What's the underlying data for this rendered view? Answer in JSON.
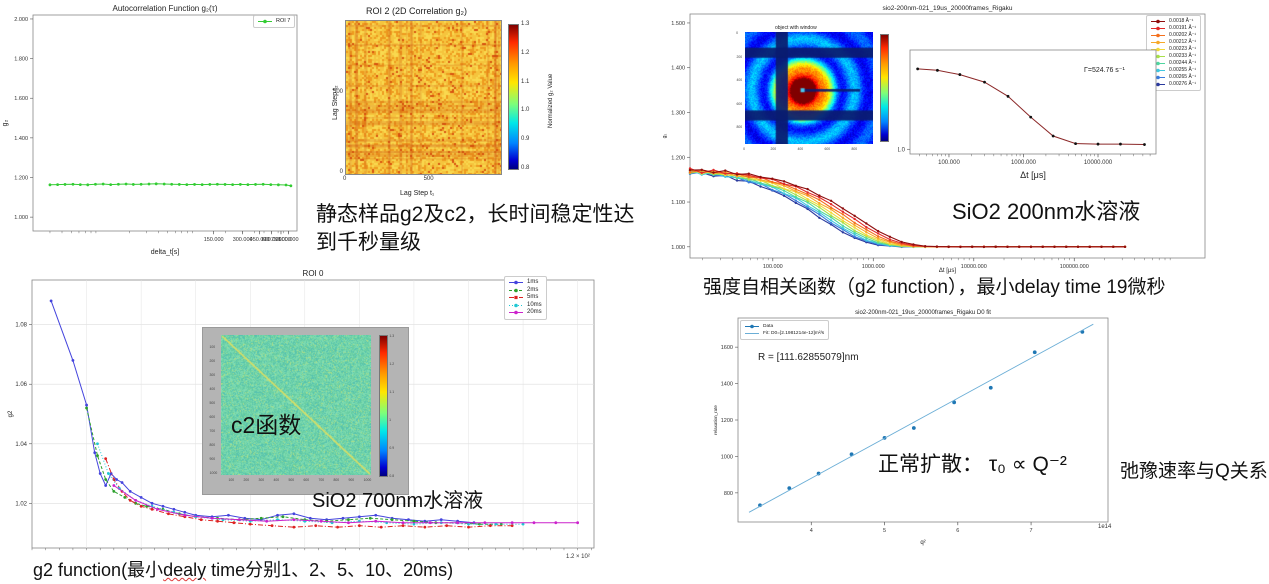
{
  "texts": {
    "static_sample": "静态样品g2及c2，长时间稳定性达到千秒量级",
    "c2_overlay": "c2函数",
    "sio2_700": "SiO2 700nm水溶液",
    "caption_left_a": "g2 function(最小",
    "caption_left_b": "dealy",
    "caption_left_c": " time分别1、2、5、10、20ms)",
    "sio2_200": "SiO2 200nm水溶液",
    "caption_right": "强度自相关函数（g2 function），最小delay time 19微秒",
    "normal_diffusion": "正常扩散：  τ₀ ∝ Q⁻²",
    "relaxation_q": "弛豫速率与Q关系",
    "gamma_annotation": "Γ=524.76 s⁻¹",
    "r_annotation": "R = [111.62855079]nm",
    "roi0_offset": "1.2 × 10²",
    "d0fit_offset": "1e14"
  },
  "chart_data": {
    "autocorr": {
      "type": "line",
      "title": "Autocorrelation Function g₂(τ)",
      "xlabel": "delta_t[s]",
      "ylabel": "g₂",
      "xlog": true,
      "xmin": 2,
      "xmax": 1100,
      "ymin": 0.93,
      "ymax": 2.02,
      "xticks": [
        {
          "v": 150,
          "l": "150.000"
        },
        {
          "v": 300,
          "l": "300.000"
        },
        {
          "v": 450,
          "l": "450.000"
        },
        {
          "v": 600,
          "l": "600.000"
        },
        {
          "v": 750,
          "l": "750.000"
        },
        {
          "v": 900,
          "l": "900.000"
        }
      ],
      "yticks": [
        {
          "v": 1.0,
          "l": "1.000"
        },
        {
          "v": 1.2,
          "l": "1.200"
        },
        {
          "v": 1.4,
          "l": "1.400"
        },
        {
          "v": 1.6,
          "l": "1.600"
        },
        {
          "v": 1.8,
          "l": "1.800"
        },
        {
          "v": 2.0,
          "l": "2.000"
        }
      ],
      "legend": [
        {
          "label": "ROI 7",
          "color": "#33cc33",
          "dash": "none",
          "marker": "circle"
        }
      ],
      "series": [
        {
          "name": "ROI 7",
          "color": "#33cc33",
          "marker": true,
          "x": [
            3,
            3.6,
            4.3,
            5.2,
            6.2,
            7.4,
            8.9,
            10.7,
            12.8,
            15.4,
            18.5,
            22,
            26.5,
            32,
            38,
            46,
            55,
            66,
            79,
            95,
            114,
            137,
            164,
            197,
            236,
            284,
            340,
            408,
            490,
            588,
            705,
            846,
            950
          ],
          "y": [
            1.163,
            1.164,
            1.165,
            1.166,
            1.164,
            1.163,
            1.166,
            1.167,
            1.164,
            1.166,
            1.167,
            1.165,
            1.166,
            1.167,
            1.168,
            1.167,
            1.166,
            1.165,
            1.164,
            1.165,
            1.164,
            1.165,
            1.166,
            1.165,
            1.164,
            1.165,
            1.164,
            1.165,
            1.166,
            1.164,
            1.163,
            1.162,
            1.158
          ]
        }
      ]
    },
    "roi2": {
      "type": "heatmap",
      "title": "ROI 2 (2D Correlation g₂)",
      "xlabel": "Lag Step t₁",
      "ylabel": "Lag Step t₂",
      "xticks": [
        {
          "l": "0",
          "f": 0
        },
        {
          "l": "500",
          "f": 0.52
        }
      ],
      "yticks": [
        {
          "l": "500",
          "f": 0.52
        },
        {
          "l": "0",
          "f": 0
        }
      ],
      "colorbar": {
        "label": "Normalized g₂ Value",
        "ticks": [
          "1.3",
          "1.2",
          "1.1",
          "1.0",
          "0.9",
          "0.8"
        ]
      }
    },
    "roi0": {
      "type": "line",
      "title": "ROI 0",
      "ylabel": "g2",
      "xlog": false,
      "xmin": 0,
      "xmax": 1.03,
      "ymin": 1.005,
      "ymax": 1.095,
      "grid": true,
      "yticks": [
        {
          "v": 1.02,
          "l": "1.02"
        },
        {
          "v": 1.04,
          "l": "1.04"
        },
        {
          "v": 1.06,
          "l": "1.06"
        },
        {
          "v": 1.08,
          "l": "1.08"
        }
      ],
      "legend": [
        {
          "label": "1ms",
          "color": "#4444dd",
          "dash": "none",
          "marker": "circle"
        },
        {
          "label": "2ms",
          "color": "#2ca02c",
          "dash": "3,2",
          "marker": "circle"
        },
        {
          "label": "5ms",
          "color": "#dd2222",
          "dash": "5,2,1,2",
          "marker": "square"
        },
        {
          "label": "10ms",
          "color": "#1fc8d4",
          "dash": "1,2",
          "marker": "circle"
        },
        {
          "label": "20ms",
          "color": "#cc22cc",
          "dash": "none",
          "marker": "circle"
        }
      ],
      "series": [
        {
          "name": "1ms",
          "color": "#4444dd",
          "marker": true,
          "x": [
            0.035,
            0.075,
            0.1,
            0.115,
            0.125,
            0.135,
            0.145,
            0.155,
            0.165,
            0.18,
            0.2,
            0.22,
            0.24,
            0.26,
            0.28,
            0.3,
            0.33,
            0.36,
            0.39,
            0.42,
            0.45,
            0.48,
            0.51,
            0.54,
            0.57,
            0.6,
            0.63,
            0.66,
            0.69,
            0.72,
            0.75,
            0.78,
            0.81
          ],
          "y": [
            1.088,
            1.068,
            1.053,
            1.037,
            1.03,
            1.026,
            1.03,
            1.028,
            1.027,
            1.024,
            1.022,
            1.02,
            1.019,
            1.018,
            1.017,
            1.016,
            1.0155,
            1.016,
            1.015,
            1.0145,
            1.016,
            1.0165,
            1.015,
            1.0145,
            1.015,
            1.0155,
            1.016,
            1.015,
            1.0145,
            1.014,
            1.0145,
            1.014,
            1.0135
          ]
        },
        {
          "name": "2ms",
          "color": "#2ca02c",
          "dash": "3,2",
          "marker": true,
          "x": [
            0.1,
            0.12,
            0.135,
            0.15,
            0.17,
            0.19,
            0.21,
            0.24,
            0.27,
            0.3,
            0.34,
            0.38,
            0.42,
            0.46,
            0.5,
            0.54,
            0.58,
            0.62,
            0.66,
            0.7,
            0.74,
            0.78,
            0.82,
            0.86
          ],
          "y": [
            1.052,
            1.036,
            1.028,
            1.024,
            1.022,
            1.02,
            1.019,
            1.018,
            1.0165,
            1.0155,
            1.015,
            1.0145,
            1.015,
            1.0155,
            1.0145,
            1.014,
            1.0145,
            1.015,
            1.0145,
            1.014,
            1.0135,
            1.0135,
            1.013,
            1.013
          ]
        },
        {
          "name": "5ms",
          "color": "#dd2222",
          "dash": "5,2,1,2",
          "marker": true,
          "x": [
            0.135,
            0.15,
            0.165,
            0.18,
            0.2,
            0.22,
            0.25,
            0.28,
            0.31,
            0.34,
            0.37,
            0.4,
            0.44,
            0.48,
            0.52,
            0.56,
            0.6,
            0.64,
            0.68,
            0.72,
            0.76,
            0.8,
            0.84,
            0.88
          ],
          "y": [
            1.035,
            1.028,
            1.024,
            1.021,
            1.019,
            1.018,
            1.0165,
            1.0155,
            1.0145,
            1.014,
            1.0135,
            1.013,
            1.0125,
            1.012,
            1.0125,
            1.012,
            1.0125,
            1.012,
            1.0125,
            1.012,
            1.0125,
            1.012,
            1.0125,
            1.0125
          ]
        },
        {
          "name": "10ms",
          "color": "#1fc8d4",
          "dash": "1,2",
          "marker": true,
          "x": [
            0.12,
            0.14,
            0.16,
            0.19,
            0.22,
            0.26,
            0.3,
            0.35,
            0.4,
            0.45,
            0.5,
            0.55,
            0.6,
            0.65,
            0.7,
            0.75,
            0.8,
            0.85,
            0.9
          ],
          "y": [
            1.04,
            1.03,
            1.025,
            1.021,
            1.019,
            1.017,
            1.0155,
            1.0145,
            1.014,
            1.0145,
            1.014,
            1.0135,
            1.014,
            1.0135,
            1.013,
            1.0135,
            1.013,
            1.013,
            1.013
          ]
        },
        {
          "name": "20ms",
          "color": "#cc22cc",
          "marker": true,
          "x": [
            0.15,
            0.19,
            0.23,
            0.28,
            0.33,
            0.38,
            0.43,
            0.48,
            0.53,
            0.58,
            0.63,
            0.68,
            0.73,
            0.78,
            0.83,
            0.88,
            0.92,
            0.96,
            1.0
          ],
          "y": [
            1.026,
            1.021,
            1.018,
            1.016,
            1.015,
            1.0145,
            1.014,
            1.0145,
            1.014,
            1.0135,
            1.014,
            1.0135,
            1.0135,
            1.0135,
            1.0135,
            1.0135,
            1.0135,
            1.0135,
            1.0135
          ]
        }
      ]
    },
    "c2_inset": {
      "type": "heatmap",
      "xticks": [
        "100",
        "200",
        "300",
        "400",
        "500",
        "600",
        "700",
        "800",
        "900",
        "1000"
      ],
      "yticks": [
        "100",
        "200",
        "300",
        "400",
        "500",
        "600",
        "700",
        "800",
        "900",
        "1000"
      ],
      "colorbar": {
        "ticks": [
          "1.3",
          "1.2",
          "1.1",
          "1",
          "0.9",
          "0.8"
        ]
      }
    },
    "rigaku": {
      "type": "line",
      "title": "sio2-200nm-021_19us_20000frames_Rigaku",
      "xlabel": "Δt [μs]",
      "ylabel": "g₂",
      "xlog": true,
      "xmin": 15,
      "xmax": 2000000,
      "ymin": 0.975,
      "ymax": 1.52,
      "baseline": 1.0,
      "beta": 0.175,
      "xticks": [
        {
          "v": 100,
          "l": "100.000"
        },
        {
          "v": 1000,
          "l": "1000.000"
        },
        {
          "v": 10000,
          "l": "10000.000"
        },
        {
          "v": 100000,
          "l": "100000.000"
        }
      ],
      "yticks": [
        {
          "v": 1.0,
          "l": "1.000"
        },
        {
          "v": 1.1,
          "l": "1.100"
        },
        {
          "v": 1.2,
          "l": "1.200"
        },
        {
          "v": 1.3,
          "l": "1.300"
        },
        {
          "v": 1.4,
          "l": "1.400"
        },
        {
          "v": 1.5,
          "l": "1.500"
        }
      ],
      "series": [
        {
          "name": "0.0018 Å⁻¹",
          "color": "#8f0d0d",
          "tau_us": 1404
        },
        {
          "name": "0.00191 Å⁻¹",
          "color": "#e22b2b",
          "tau_us": 1247
        },
        {
          "name": "0.00202 Å⁻¹",
          "color": "#f4701d",
          "tau_us": 1115
        },
        {
          "name": "0.00212 Å⁻¹",
          "color": "#f7a929",
          "tau_us": 1012
        },
        {
          "name": "0.00223 Å⁻¹",
          "color": "#f2d93b",
          "tau_us": 915
        },
        {
          "name": "0.00233 Å⁻¹",
          "color": "#a8e04a",
          "tau_us": 838
        },
        {
          "name": "0.00244 Å⁻¹",
          "color": "#4fd6a0",
          "tau_us": 764
        },
        {
          "name": "0.00255 Å⁻¹",
          "color": "#3fc8e0",
          "tau_us": 700
        },
        {
          "name": "0.00265 Å⁻¹",
          "color": "#3a7bdc",
          "tau_us": 648
        },
        {
          "name": "0.00276 Å⁻¹",
          "color": "#2b3a9e",
          "tau_us": 597
        }
      ]
    },
    "speckle": {
      "type": "heatmap",
      "title": "object with window",
      "xticks": [
        "0",
        "200",
        "400",
        "600",
        "800"
      ],
      "yticks": [
        "0",
        "200",
        "400",
        "600",
        "800"
      ]
    },
    "g2_inset": {
      "type": "line",
      "xlabel": "Δt [μs]",
      "ylabel": "g2",
      "xlog": true,
      "xmin": 30,
      "xmax": 60000,
      "ymin": 0.99,
      "ymax": 1.21,
      "xticks": [
        {
          "v": 100,
          "l": "100.000"
        },
        {
          "v": 1000,
          "l": "1000.000"
        },
        {
          "v": 10000,
          "l": "10000.000"
        }
      ],
      "yticks": [
        {
          "v": 1.0,
          "l": "1.0"
        }
      ],
      "series": [
        {
          "name": "g2 fit",
          "color": "#8b2727",
          "marker": true,
          "mc": "#111",
          "x": [
            38,
            70,
            140,
            300,
            620,
            1250,
            2500,
            5000,
            10000,
            20000,
            42000
          ],
          "y": [
            1.17,
            1.167,
            1.158,
            1.142,
            1.112,
            1.068,
            1.028,
            1.012,
            1.011,
            1.011,
            1.01
          ]
        }
      ]
    },
    "d0fit": {
      "type": "scatter",
      "title": "sio2-200nm-021_19us_20000frames_Rigaku D0 fit",
      "xlabel": "q²",
      "ylabel": "relaxation_rate",
      "xlog": false,
      "xmin": 3.0,
      "xmax": 8.05,
      "ymin": 640,
      "ymax": 1760,
      "xticks": [
        {
          "v": 4,
          "l": "4"
        },
        {
          "v": 5,
          "l": "5"
        },
        {
          "v": 6,
          "l": "6"
        },
        {
          "v": 7,
          "l": "7"
        }
      ],
      "yticks": [
        {
          "v": 800,
          "l": "800"
        },
        {
          "v": 1000,
          "l": "1000"
        },
        {
          "v": 1200,
          "l": "1200"
        },
        {
          "v": 1400,
          "l": "1400"
        },
        {
          "v": 1600,
          "l": "1600"
        }
      ],
      "legend": [
        {
          "label": "Data",
          "color": "#1f77b4",
          "dash": "none",
          "marker": "circle",
          "lineless": true
        },
        {
          "label": "Fit: D0=[2.1981214e-12]m²/s",
          "color": "#6baed6",
          "dash": "none",
          "marker": "none"
        }
      ],
      "series": [
        {
          "name": "Data",
          "color": "#1f77b4",
          "marker": true,
          "line": false,
          "ms": 1.9,
          "x": [
            3.3,
            3.7,
            4.1,
            4.55,
            5.0,
            5.4,
            5.95,
            6.45,
            7.05,
            7.7
          ],
          "y": [
            732,
            826,
            906,
            1012,
            1102,
            1156,
            1297,
            1377,
            1572,
            1684
          ]
        },
        {
          "name": "Fit",
          "color": "#6baed6",
          "lw": 0.9,
          "x": [
            3.15,
            7.85
          ],
          "y": [
            693,
            1726
          ]
        }
      ]
    }
  }
}
